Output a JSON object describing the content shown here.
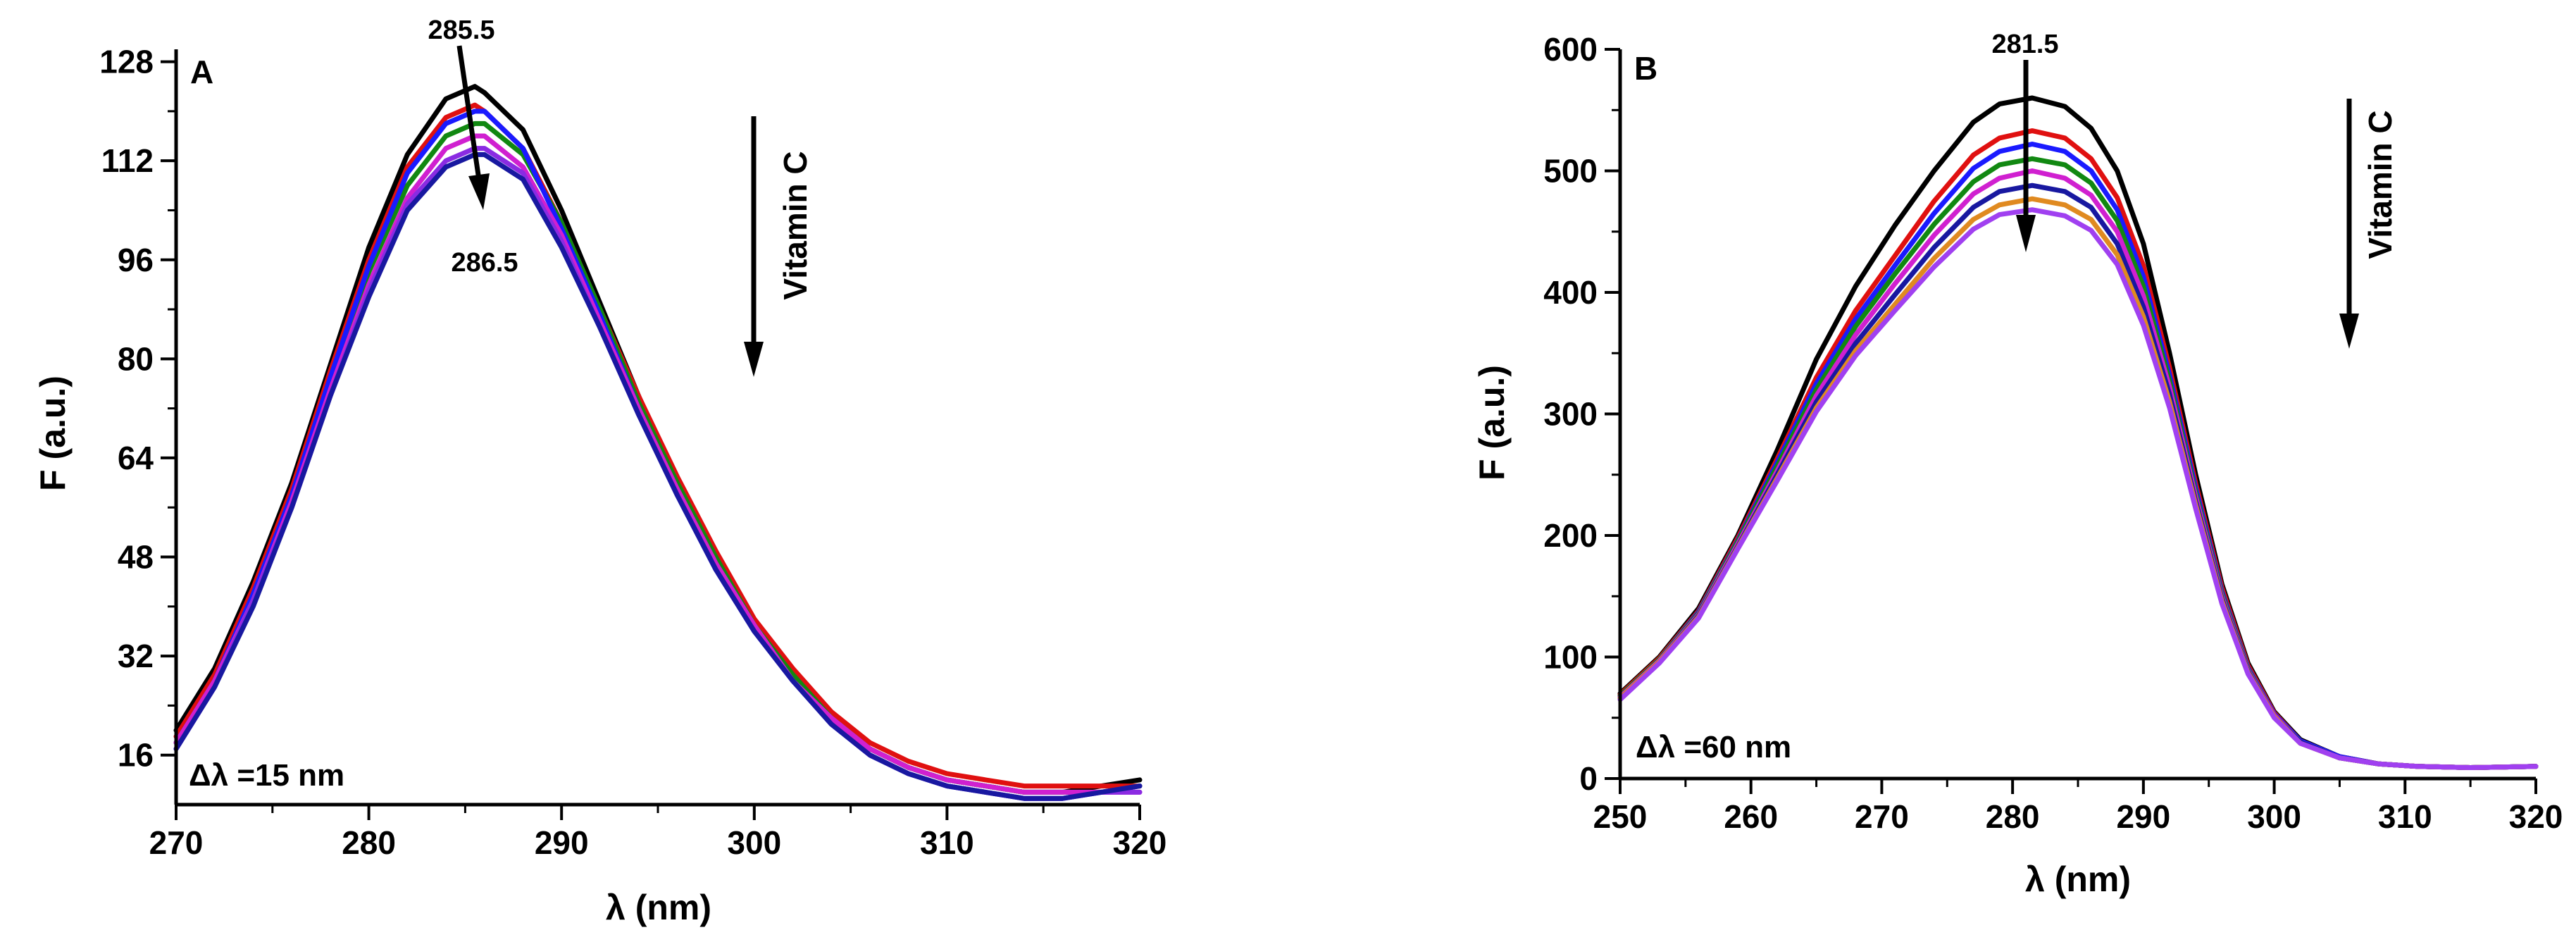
{
  "chart_data": [
    {
      "type": "line",
      "panel_label": "A",
      "xlabel": "λ (nm)",
      "ylabel": "F (a.u.)",
      "xlim": [
        270,
        320
      ],
      "ylim": [
        8,
        130
      ],
      "xticks": [
        270,
        280,
        290,
        300,
        310,
        320
      ],
      "yticks": [
        16,
        32,
        48,
        64,
        80,
        96,
        112,
        128
      ],
      "grid": false,
      "inset_text": "Δλ =15 nm",
      "arrow_label": "Vitamin C",
      "peak_labels": [
        "285.5",
        "286.5"
      ],
      "x": [
        270,
        272,
        274,
        276,
        278,
        280,
        282,
        284,
        285.5,
        286,
        288,
        290,
        292,
        294,
        296,
        298,
        300,
        302,
        304,
        306,
        308,
        310,
        312,
        314,
        316,
        318,
        320
      ],
      "series": [
        {
          "color": "#000000",
          "values": [
            20,
            30,
            44,
            60,
            79,
            98,
            113,
            122,
            124,
            123,
            117,
            104,
            89,
            74,
            60,
            48,
            37,
            29,
            22,
            17,
            14,
            12,
            11,
            10,
            10,
            11,
            12
          ]
        },
        {
          "color": "#e01010",
          "values": [
            19,
            29,
            43,
            59,
            78,
            96,
            111,
            119,
            121,
            120,
            114,
            102,
            88,
            74,
            61,
            49,
            38,
            30,
            23,
            18,
            15,
            13,
            12,
            11,
            11,
            11,
            11
          ]
        },
        {
          "color": "#118811",
          "values": [
            18,
            28,
            42,
            58,
            76,
            94,
            108,
            116,
            118,
            118,
            113,
            102,
            88,
            73,
            60,
            48,
            37,
            29,
            22,
            17,
            14,
            12,
            11,
            10,
            10,
            10,
            11
          ]
        },
        {
          "color": "#1a1aff",
          "values": [
            18,
            28,
            42,
            58,
            77,
            95,
            110,
            118,
            120,
            120,
            114,
            101,
            87,
            72,
            58,
            46,
            36,
            28,
            21,
            16,
            13,
            11,
            10,
            9,
            9,
            10,
            11
          ]
        },
        {
          "color": "#d020d0",
          "values": [
            18,
            28,
            41,
            57,
            75,
            92,
            106,
            114,
            116,
            116,
            111,
            100,
            86,
            72,
            59,
            47,
            37,
            28,
            22,
            17,
            14,
            12,
            11,
            10,
            10,
            10,
            10
          ]
        },
        {
          "color": "#8a2be2",
          "values": [
            17,
            27,
            41,
            56,
            74,
            91,
            105,
            112,
            114,
            114,
            110,
            99,
            85,
            71,
            58,
            46,
            36,
            28,
            21,
            16,
            13,
            11,
            10,
            9,
            9,
            10,
            10
          ]
        },
        {
          "color": "#1818a0",
          "values": [
            17,
            27,
            40,
            56,
            74,
            90,
            104,
            111,
            113,
            113,
            109,
            98,
            85,
            71,
            58,
            46,
            36,
            28,
            21,
            16,
            13,
            11,
            10,
            9,
            9,
            10,
            11
          ]
        }
      ]
    },
    {
      "type": "line",
      "panel_label": "B",
      "xlabel": "λ (nm)",
      "ylabel": "F (a.u.)",
      "xlim": [
        250,
        320
      ],
      "ylim": [
        0,
        600
      ],
      "xticks": [
        250,
        260,
        270,
        280,
        290,
        300,
        310,
        320
      ],
      "yticks": [
        0,
        100,
        200,
        300,
        400,
        500,
        600
      ],
      "grid": false,
      "inset_text": "Δλ =60 nm",
      "arrow_label": "Vitamin C",
      "peak_labels": [
        "281.5"
      ],
      "x": [
        250,
        253,
        256,
        259,
        262,
        265,
        268,
        271,
        274,
        277,
        279,
        281.5,
        284,
        286,
        288,
        290,
        292,
        294,
        296,
        298,
        300,
        302,
        305,
        308,
        311,
        315,
        320
      ],
      "series": [
        {
          "color": "#000000",
          "values": [
            70,
            100,
            140,
            200,
            270,
            345,
            405,
            455,
            500,
            540,
            555,
            560,
            553,
            535,
            500,
            440,
            350,
            250,
            160,
            95,
            55,
            32,
            18,
            12,
            10,
            9,
            10
          ]
        },
        {
          "color": "#e01010",
          "values": [
            69,
            99,
            138,
            198,
            263,
            330,
            385,
            430,
            475,
            513,
            527,
            533,
            527,
            510,
            478,
            422,
            338,
            243,
            157,
            93,
            54,
            31,
            18,
            12,
            10,
            9,
            10
          ]
        },
        {
          "color": "#1a1aff",
          "values": [
            68,
            98,
            137,
            196,
            260,
            325,
            378,
            422,
            465,
            502,
            516,
            522,
            516,
            500,
            468,
            413,
            332,
            239,
            154,
            91,
            53,
            31,
            18,
            12,
            10,
            9,
            10
          ]
        },
        {
          "color": "#118811",
          "values": [
            68,
            98,
            136,
            195,
            257,
            320,
            372,
            415,
            456,
            491,
            505,
            510,
            505,
            490,
            459,
            405,
            327,
            235,
            152,
            90,
            52,
            30,
            17,
            12,
            10,
            9,
            10
          ]
        },
        {
          "color": "#d020d0",
          "values": [
            67,
            97,
            135,
            193,
            253,
            315,
            365,
            407,
            447,
            481,
            494,
            500,
            494,
            480,
            450,
            397,
            322,
            232,
            150,
            89,
            52,
            30,
            17,
            12,
            10,
            9,
            10
          ]
        },
        {
          "color": "#1818a0",
          "values": [
            66,
            96,
            134,
            191,
            250,
            310,
            358,
            398,
            437,
            470,
            483,
            488,
            483,
            470,
            440,
            388,
            316,
            228,
            148,
            88,
            51,
            30,
            17,
            12,
            10,
            9,
            10
          ]
        },
        {
          "color": "#e08a20",
          "values": [
            66,
            96,
            133,
            190,
            247,
            305,
            352,
            390,
            428,
            460,
            472,
            477,
            472,
            460,
            431,
            380,
            310,
            225,
            146,
            87,
            51,
            29,
            17,
            12,
            10,
            9,
            10
          ]
        },
        {
          "color": "#a040f0",
          "values": [
            65,
            95,
            132,
            189,
            245,
            302,
            348,
            385,
            421,
            452,
            464,
            468,
            463,
            451,
            423,
            373,
            305,
            222,
            144,
            86,
            50,
            29,
            17,
            12,
            10,
            9,
            10
          ]
        }
      ]
    }
  ]
}
